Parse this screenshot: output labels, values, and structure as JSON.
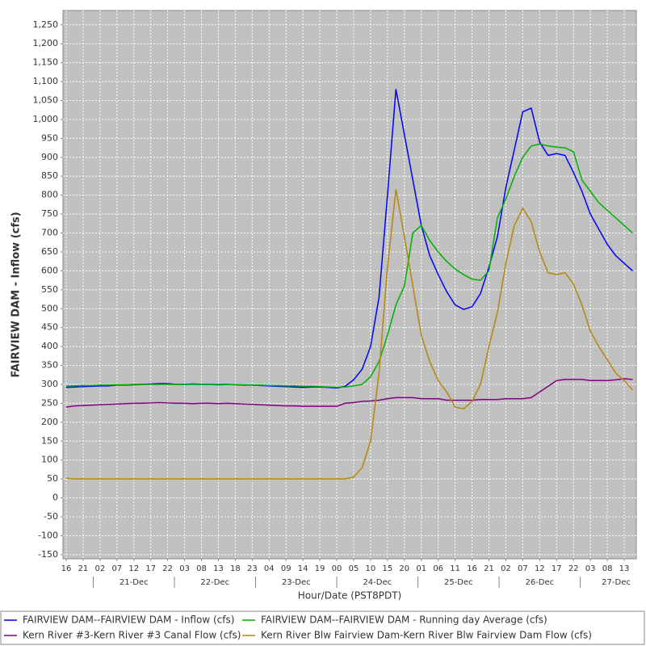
{
  "chart_data": {
    "type": "line",
    "y_label": "FAIRVIEW DAM - Inflow (cfs)",
    "x_label": "Hour/Date (PST8PDT)",
    "categories": [
      "16",
      null,
      "21",
      null,
      "02",
      null,
      "07",
      null,
      "12",
      null,
      "17",
      null,
      "22",
      null,
      "03",
      null,
      "08",
      null,
      "13",
      null,
      "18",
      null,
      "23",
      null,
      "04",
      null,
      "09",
      null,
      "14",
      null,
      "19",
      null,
      "00",
      null,
      "05",
      null,
      "10",
      null,
      "15",
      null,
      "20",
      null,
      "01",
      null,
      "06",
      null,
      "11",
      null,
      "16",
      null,
      "21",
      null,
      "02",
      null,
      "07",
      null,
      "12",
      null,
      "17",
      null,
      "22",
      null,
      "03",
      null,
      "08",
      null,
      "13",
      null
    ],
    "x_date_labels": [
      "21-Dec",
      "22-Dec",
      "23-Dec",
      "24-Dec",
      "25-Dec",
      "26-Dec",
      "27-Dec"
    ],
    "series": [
      {
        "name": "FAIRVIEW DAM--FAIRVIEW DAM - Inflow  (cfs)",
        "color": "#0000ff",
        "values": [
          292,
          293,
          294,
          295,
          296,
          296,
          298,
          298,
          299,
          300,
          301,
          302,
          302,
          300,
          300,
          301,
          300,
          300,
          299,
          300,
          299,
          298,
          298,
          297,
          296,
          295,
          294,
          293,
          292,
          293,
          293,
          292,
          290,
          295,
          312,
          340,
          400,
          530,
          800,
          1080,
          960,
          840,
          720,
          640,
          590,
          545,
          510,
          498,
          505,
          540,
          610,
          690,
          820,
          920,
          1020,
          1030,
          940,
          905,
          910,
          905,
          860,
          810,
          750,
          710,
          670,
          640,
          620,
          600
        ]
      },
      {
        "name": "FAIRVIEW DAM--FAIRVIEW DAM - Running day Average  (cfs)",
        "color": "#00b000",
        "values": [
          296,
          296,
          297,
          297,
          298,
          298,
          299,
          299,
          300,
          300,
          300,
          300,
          300,
          300,
          300,
          300,
          300,
          300,
          300,
          300,
          299,
          299,
          298,
          298,
          297,
          297,
          296,
          296,
          295,
          295,
          294,
          293,
          292,
          293,
          296,
          300,
          320,
          360,
          430,
          510,
          560,
          700,
          720,
          680,
          650,
          625,
          605,
          590,
          578,
          575,
          600,
          740,
          790,
          850,
          900,
          930,
          935,
          930,
          927,
          925,
          915,
          840,
          810,
          780,
          760,
          740,
          720,
          700
        ]
      },
      {
        "name": "Kern River #3-Kern River #3 Canal Flow  (cfs)",
        "color": "#800080",
        "values": [
          240,
          243,
          244,
          245,
          246,
          247,
          248,
          249,
          250,
          250,
          251,
          252,
          251,
          250,
          250,
          249,
          250,
          250,
          249,
          250,
          249,
          248,
          247,
          246,
          245,
          244,
          243,
          243,
          242,
          242,
          242,
          242,
          242,
          250,
          252,
          255,
          256,
          258,
          262,
          265,
          265,
          265,
          262,
          262,
          262,
          258,
          258,
          258,
          258,
          260,
          260,
          260,
          262,
          262,
          262,
          265,
          280,
          295,
          310,
          313,
          313,
          313,
          310,
          310,
          310,
          312,
          315,
          313
        ]
      },
      {
        "name": "Kern River Blw Fairview Dam-Kern River Blw Fairview Dam Flow  (cfs)",
        "color": "#b8860b",
        "values": [
          52,
          50,
          50,
          50,
          50,
          50,
          50,
          50,
          50,
          50,
          50,
          50,
          50,
          50,
          50,
          50,
          50,
          50,
          50,
          50,
          50,
          50,
          50,
          50,
          50,
          50,
          50,
          50,
          50,
          50,
          50,
          50,
          50,
          50,
          55,
          80,
          150,
          330,
          610,
          815,
          690,
          560,
          430,
          360,
          310,
          280,
          240,
          235,
          255,
          300,
          400,
          490,
          620,
          720,
          765,
          730,
          650,
          595,
          590,
          595,
          565,
          510,
          440,
          400,
          365,
          330,
          310,
          285
        ]
      }
    ],
    "ylim": [
      -161,
      1288
    ],
    "yticks": [
      -150,
      -100,
      -50,
      0,
      50,
      100,
      150,
      200,
      250,
      300,
      350,
      400,
      450,
      500,
      550,
      600,
      650,
      700,
      750,
      800,
      850,
      900,
      950,
      {
        "value": 1000,
        "label": "1,000"
      },
      {
        "value": 1050,
        "label": "1,050"
      },
      {
        "value": 1100,
        "label": "1,100"
      },
      {
        "value": 1150,
        "label": "1,150"
      },
      {
        "value": 1200,
        "label": "1,200"
      },
      {
        "value": 1250,
        "label": "1,250"
      }
    ],
    "grid": true,
    "background": "#c0c0c0"
  }
}
